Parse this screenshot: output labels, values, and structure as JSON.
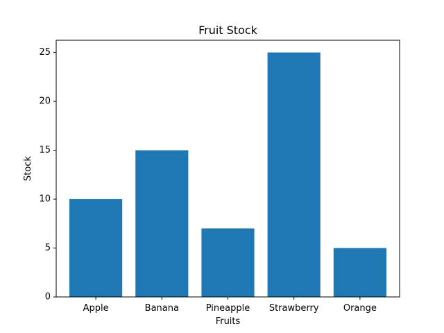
{
  "chart_data": {
    "type": "bar",
    "title": "Fruit Stock",
    "xlabel": "Fruits",
    "ylabel": "Stock",
    "categories": [
      "Apple",
      "Banana",
      "Pineapple",
      "Strawberry",
      "Orange"
    ],
    "values": [
      10,
      15,
      7,
      25,
      5
    ],
    "ylim": [
      0,
      26.25
    ],
    "yticks": [
      0,
      5,
      10,
      15,
      20,
      25
    ],
    "grid": false,
    "bar_color": "#1f77b4"
  }
}
